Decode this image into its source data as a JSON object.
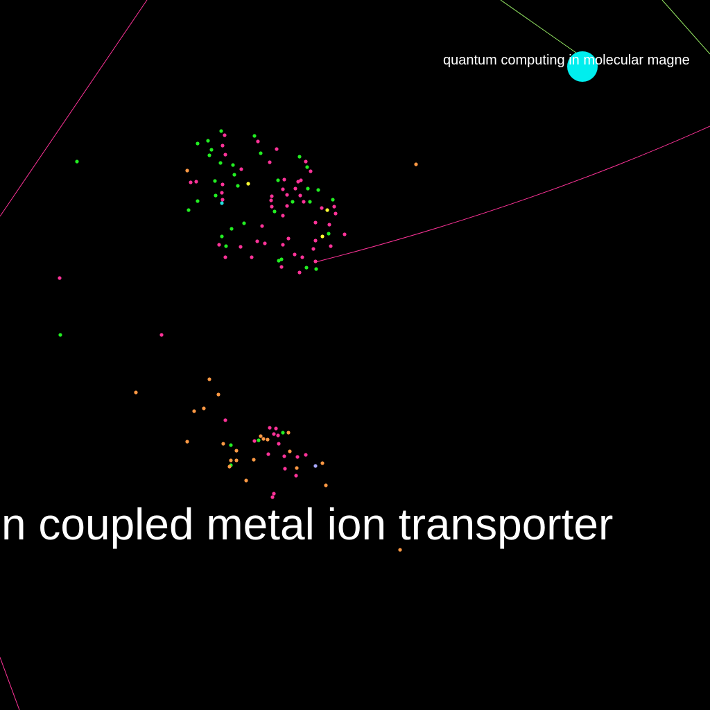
{
  "background": "#000000",
  "palette": {
    "pink": "#ff3399",
    "green": "#22ee22",
    "orange": "#ff9944",
    "yellow": "#ffff33",
    "cyan": "#22dddd",
    "lavender": "#aaaaff",
    "light_green": "#99ee66",
    "highlight": "#00eeee"
  },
  "labels": {
    "top_node": "quantum computing in molecular magne",
    "bottom_node": "n coupled metal ion transporter"
  }
}
